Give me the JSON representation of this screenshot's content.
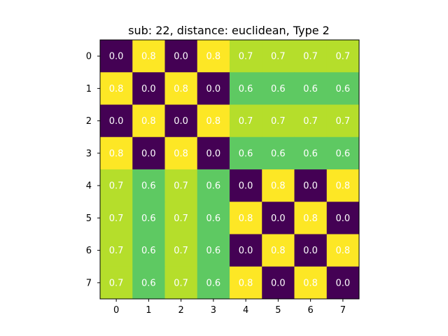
{
  "chart_data": {
    "type": "heatmap",
    "title": "sub: 22, distance: euclidean, Type 2",
    "x_ticks": [
      "0",
      "1",
      "2",
      "3",
      "4",
      "5",
      "6",
      "7"
    ],
    "y_ticks": [
      "0",
      "1",
      "2",
      "3",
      "4",
      "5",
      "6",
      "7"
    ],
    "colormap": "viridis",
    "value_range": [
      0.0,
      0.8
    ],
    "grid": false,
    "values": [
      [
        0.0,
        0.8,
        0.0,
        0.8,
        0.7,
        0.7,
        0.7,
        0.7
      ],
      [
        0.8,
        0.0,
        0.8,
        0.0,
        0.6,
        0.6,
        0.6,
        0.6
      ],
      [
        0.0,
        0.8,
        0.0,
        0.8,
        0.7,
        0.7,
        0.7,
        0.7
      ],
      [
        0.8,
        0.0,
        0.8,
        0.0,
        0.6,
        0.6,
        0.6,
        0.6
      ],
      [
        0.7,
        0.6,
        0.7,
        0.6,
        0.0,
        0.8,
        0.0,
        0.8
      ],
      [
        0.7,
        0.6,
        0.7,
        0.6,
        0.8,
        0.0,
        0.8,
        0.0
      ],
      [
        0.7,
        0.6,
        0.7,
        0.6,
        0.0,
        0.8,
        0.0,
        0.8
      ],
      [
        0.7,
        0.6,
        0.7,
        0.6,
        0.8,
        0.0,
        0.8,
        0.0
      ]
    ],
    "cell_colors": {
      "0.0": "#440154",
      "0.6": "#5ec962",
      "0.7": "#b5de2b",
      "0.8": "#fde725"
    }
  }
}
